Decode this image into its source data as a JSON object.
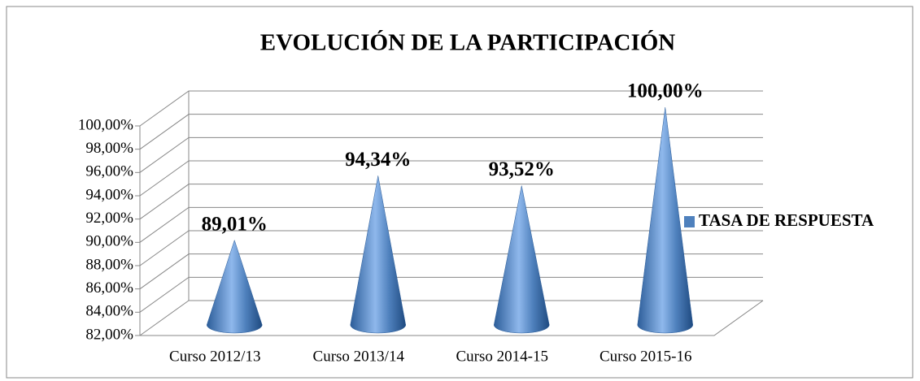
{
  "chart_data": {
    "type": "cone",
    "title": "EVOLUCIÓN DE LA PARTICIPACIÓN",
    "categories": [
      "Curso 2012/13",
      "Curso 2013/14",
      "Curso 2014-15",
      "Curso 2015-16"
    ],
    "series": [
      {
        "name": "TASA DE RESPUESTA",
        "color": "#4f81bd",
        "values": [
          89.01,
          94.34,
          93.52,
          100
        ],
        "value_labels": [
          "89,01%",
          "94,34%",
          "93,52%",
          "100,00%"
        ]
      }
    ],
    "ylim": [
      82,
      100
    ],
    "yticks": [
      {
        "value": 82,
        "label": "82,00%"
      },
      {
        "value": 84,
        "label": "84,00%"
      },
      {
        "value": 86,
        "label": "86,00%"
      },
      {
        "value": 88,
        "label": "88,00%"
      },
      {
        "value": 90,
        "label": "90,00%"
      },
      {
        "value": 92,
        "label": "92,00%"
      },
      {
        "value": 94,
        "label": "94,00%"
      },
      {
        "value": 96,
        "label": "96,00%"
      },
      {
        "value": 98,
        "label": "98,00%"
      },
      {
        "value": 100,
        "label": "100,00%"
      }
    ],
    "grid": true,
    "legend": "right"
  }
}
